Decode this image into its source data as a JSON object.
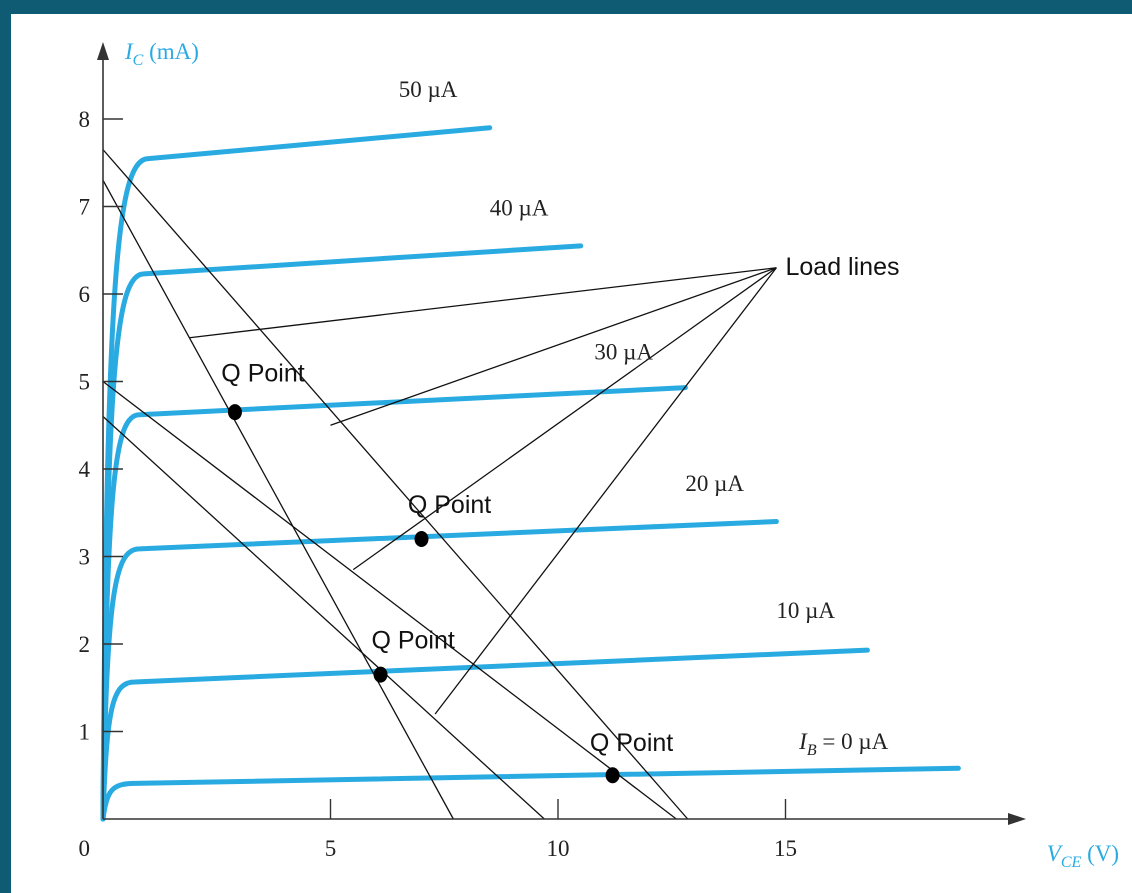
{
  "colors": {
    "frame": "#0e5b73",
    "background": "#ffffff",
    "curve": "#29abe2",
    "ink": "#111111",
    "axis_title": "#29abe2"
  },
  "chart_data": {
    "type": "line",
    "title": "",
    "xlabel": {
      "symbol": "V",
      "subscript": "CE",
      "unit": "(V)"
    },
    "ylabel": {
      "symbol": "I",
      "subscript": "C",
      "unit": "(mA)"
    },
    "xlim": [
      0,
      20
    ],
    "ylim": [
      0,
      9
    ],
    "x_ticks": [
      {
        "value": 5,
        "label": "5"
      },
      {
        "value": 10,
        "label": "10"
      },
      {
        "value": 15,
        "label": "15"
      }
    ],
    "y_ticks": [
      {
        "value": 1,
        "label": "1"
      },
      {
        "value": 2,
        "label": "2"
      },
      {
        "value": 3,
        "label": "3"
      },
      {
        "value": 4,
        "label": "4"
      },
      {
        "value": 5,
        "label": "5"
      },
      {
        "value": 6,
        "label": "6"
      },
      {
        "value": 7,
        "label": "7"
      },
      {
        "value": 8,
        "label": "8"
      }
    ],
    "origin_label": "0",
    "series": [
      {
        "name": "I_B = 0 µA",
        "label": "= 0 µA",
        "label_prefix": "I",
        "label_sub": "B",
        "knee_x": 0.7,
        "x_end": 18.8,
        "values": [
          0.4,
          0.58
        ],
        "label_at": [
          15.3,
          0.8
        ]
      },
      {
        "name": "10 µA",
        "label": "10 µA",
        "knee_x": 0.7,
        "x_end": 16.8,
        "values": [
          1.55,
          1.93
        ],
        "label_at": [
          14.8,
          2.3
        ]
      },
      {
        "name": "20 µA",
        "label": "20 µA",
        "knee_x": 0.8,
        "x_end": 14.8,
        "values": [
          3.07,
          3.4
        ],
        "label_at": [
          12.8,
          3.75
        ]
      },
      {
        "name": "30 µA",
        "label": "30 µA",
        "knee_x": 0.8,
        "x_end": 12.8,
        "values": [
          4.6,
          4.93
        ],
        "label_at": [
          10.8,
          5.25
        ]
      },
      {
        "name": "40 µA",
        "label": "40 µA",
        "knee_x": 0.9,
        "x_end": 10.5,
        "values": [
          6.2,
          6.55
        ],
        "label_at": [
          8.5,
          6.9
        ]
      },
      {
        "name": "50 µA",
        "label": "50 µA",
        "knee_x": 1.0,
        "x_end": 8.5,
        "values": [
          7.5,
          7.9
        ],
        "label_at": [
          6.5,
          8.25
        ]
      }
    ],
    "load_lines": [
      {
        "x0": 0,
        "y0": 7.65,
        "x1": 12.85,
        "y1": 0
      },
      {
        "x0": 0,
        "y0": 7.3,
        "x1": 7.7,
        "y1": 0
      },
      {
        "x0": 0,
        "y0": 5.0,
        "x1": 12.6,
        "y1": 0
      },
      {
        "x0": 0,
        "y0": 4.6,
        "x1": 9.7,
        "y1": 0
      }
    ],
    "q_points": [
      {
        "x": 2.9,
        "y": 4.65,
        "label": "Q Point",
        "label_at": [
          2.6,
          5.0
        ]
      },
      {
        "x": 7.0,
        "y": 3.2,
        "label": "Q Point",
        "label_at": [
          6.7,
          3.5
        ]
      },
      {
        "x": 6.1,
        "y": 1.65,
        "label": "Q Point",
        "label_at": [
          5.9,
          1.95
        ]
      },
      {
        "x": 11.2,
        "y": 0.5,
        "label": "Q Point",
        "label_at": [
          10.7,
          0.78
        ]
      }
    ],
    "annotation": {
      "text": "Load lines",
      "at": [
        14.8,
        6.3
      ],
      "text_at": [
        15.0,
        6.22
      ],
      "targets": [
        [
          1.9,
          5.5
        ],
        [
          5.0,
          4.5
        ],
        [
          5.5,
          2.85
        ],
        [
          7.3,
          1.2
        ]
      ]
    }
  }
}
